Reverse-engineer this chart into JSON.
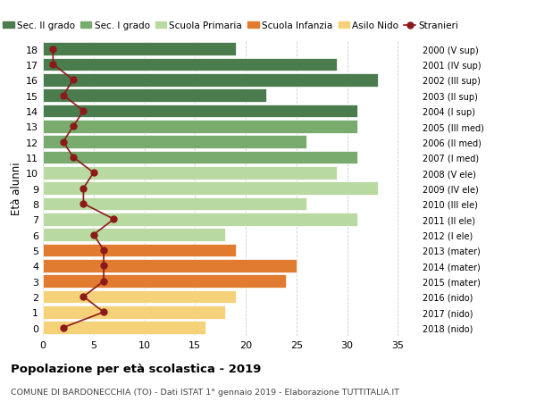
{
  "ages": [
    18,
    17,
    16,
    15,
    14,
    13,
    12,
    11,
    10,
    9,
    8,
    7,
    6,
    5,
    4,
    3,
    2,
    1,
    0
  ],
  "years": [
    "2000 (V sup)",
    "2001 (IV sup)",
    "2002 (III sup)",
    "2003 (II sup)",
    "2004 (I sup)",
    "2005 (III med)",
    "2006 (II med)",
    "2007 (I med)",
    "2008 (V ele)",
    "2009 (IV ele)",
    "2010 (III ele)",
    "2011 (II ele)",
    "2012 (I ele)",
    "2013 (mater)",
    "2014 (mater)",
    "2015 (mater)",
    "2016 (nido)",
    "2017 (nido)",
    "2018 (nido)"
  ],
  "bar_values": [
    19,
    29,
    33,
    22,
    31,
    31,
    26,
    31,
    29,
    33,
    26,
    31,
    18,
    19,
    25,
    24,
    19,
    18,
    16
  ],
  "bar_colors": [
    "#4a7c4e",
    "#4a7c4e",
    "#4a7c4e",
    "#4a7c4e",
    "#4a7c4e",
    "#7aab6e",
    "#7aab6e",
    "#7aab6e",
    "#b8d9a0",
    "#b8d9a0",
    "#b8d9a0",
    "#b8d9a0",
    "#b8d9a0",
    "#e07b30",
    "#e07b30",
    "#e07b30",
    "#f5d27a",
    "#f5d27a",
    "#f5d27a"
  ],
  "stranieri_values": [
    1,
    1,
    3,
    2,
    4,
    3,
    2,
    3,
    5,
    4,
    4,
    7,
    5,
    6,
    6,
    6,
    4,
    6,
    2
  ],
  "legend_labels": [
    "Sec. II grado",
    "Sec. I grado",
    "Scuola Primaria",
    "Scuola Infanzia",
    "Asilo Nido",
    "Stranieri"
  ],
  "legend_colors": [
    "#4a7c4e",
    "#7aab6e",
    "#b8d9a0",
    "#e07b30",
    "#f5d27a",
    "#8b1a1a"
  ],
  "title": "Popolazione per età scolastica - 2019",
  "subtitle": "COMUNE DI BARDONECCHIA (TO) - Dati ISTAT 1° gennaio 2019 - Elaborazione TUTTITALIA.IT",
  "ylabel_left": "Età alunni",
  "xlim": [
    0,
    37
  ],
  "background_color": "#ffffff",
  "grid_color": "#cccccc",
  "bar_height": 0.85
}
